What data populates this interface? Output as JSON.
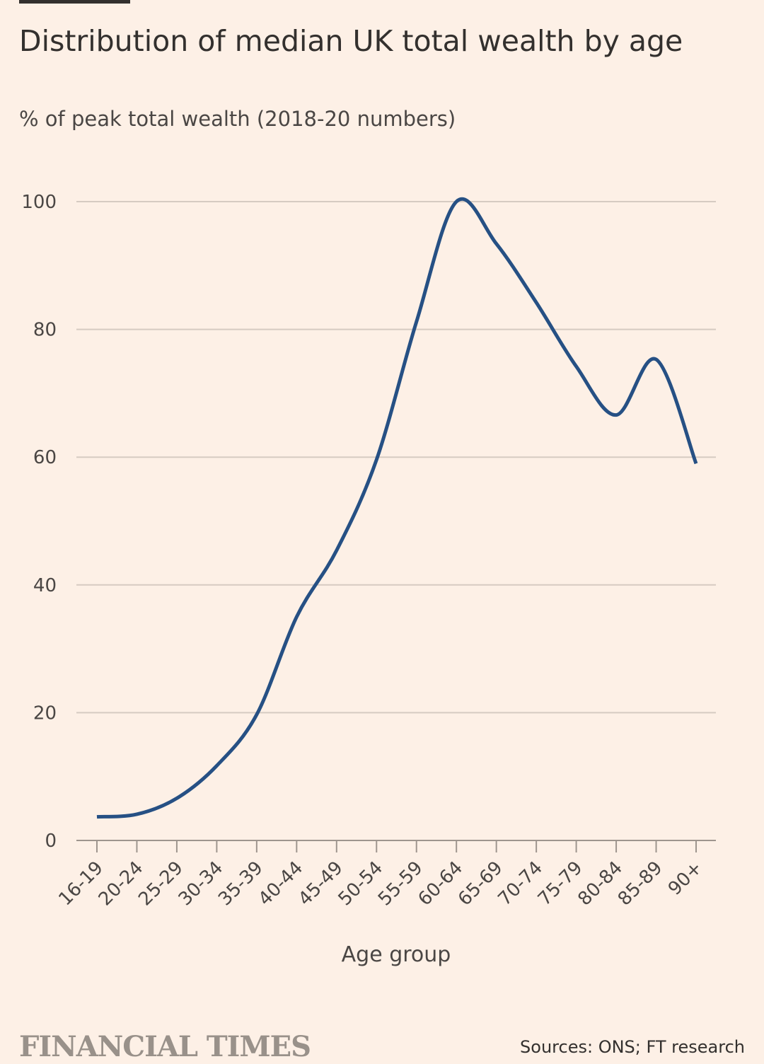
{
  "header": {
    "title": "Distribution of median UK total wealth by age",
    "subtitle": "% of peak total wealth (2018-20 numbers)"
  },
  "footer": {
    "logo": "FINANCIAL TIMES",
    "source": "Sources: ONS; FT research"
  },
  "colors": {
    "background": "#fdf0e6",
    "line": "#265084",
    "grid": "#d6cbc2"
  },
  "chart_data": {
    "type": "line",
    "title": "Distribution of median UK total wealth by age",
    "ylabel": "% of peak total wealth (2018-20 numbers)",
    "xlabel": "Age group",
    "categories": [
      "16-19",
      "20-24",
      "25-29",
      "30-34",
      "35-39",
      "40-44",
      "45-49",
      "50-54",
      "55-59",
      "60-64",
      "65-69",
      "70-74",
      "75-79",
      "80-84",
      "85-89",
      "90+"
    ],
    "values": [
      3.7,
      4.1,
      6.6,
      11.7,
      19.7,
      35,
      45.4,
      59.6,
      81.2,
      100,
      93.4,
      84.2,
      74.2,
      66.6,
      75.3,
      59
    ],
    "ylim": [
      0,
      100
    ],
    "yticks": [
      0,
      20,
      40,
      60,
      80,
      100
    ],
    "grid": true,
    "legend": "none"
  }
}
